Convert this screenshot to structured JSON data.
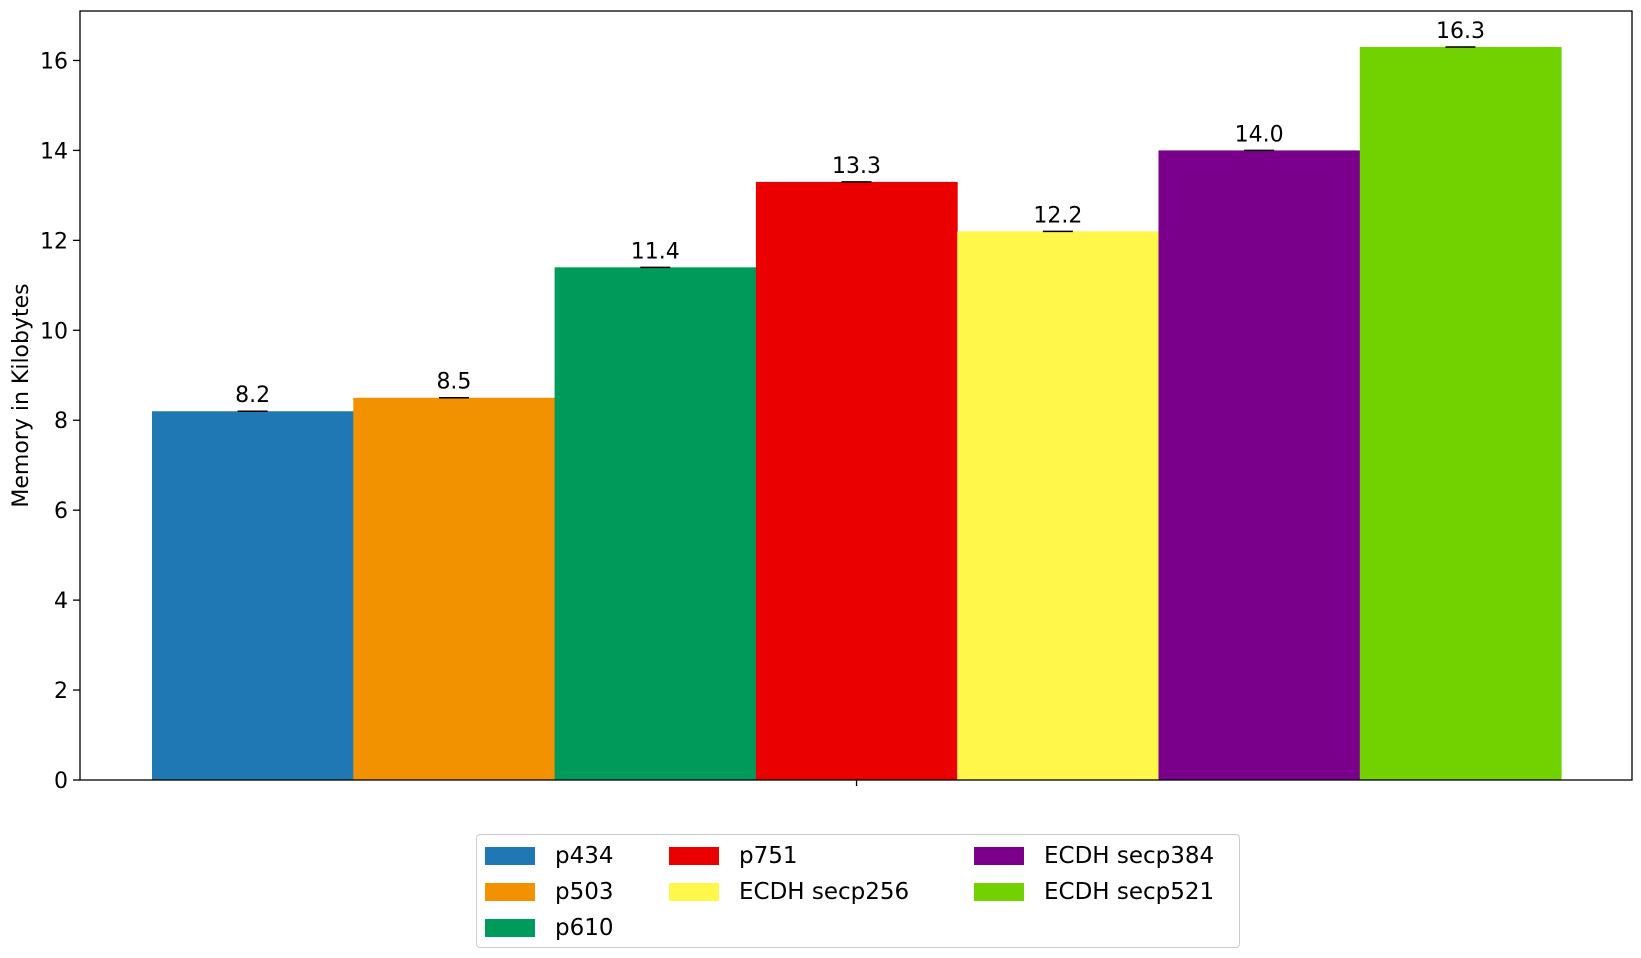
{
  "chart_data": {
    "type": "bar",
    "title": "",
    "xlabel": "",
    "ylabel": "Memory in Kilobytes",
    "ylim": [
      0,
      17.1
    ],
    "yticks": [
      0,
      2,
      4,
      6,
      8,
      10,
      12,
      14,
      16
    ],
    "grid": false,
    "legend_position": "bottom-center",
    "error_bars": true,
    "series": [
      {
        "name": "p434",
        "value": 8.2,
        "label": "8.2",
        "color": "#1f77b4"
      },
      {
        "name": "p503",
        "value": 8.5,
        "label": "8.5",
        "color": "#f39200"
      },
      {
        "name": "p610",
        "value": 11.4,
        "label": "11.4",
        "color": "#009a5b"
      },
      {
        "name": "p751",
        "value": 13.3,
        "label": "13.3",
        "color": "#eb0000"
      },
      {
        "name": "ECDH secp256",
        "value": 12.2,
        "label": "12.2",
        "color": "#fff84a"
      },
      {
        "name": "ECDH secp384",
        "value": 14.0,
        "label": "14.0",
        "color": "#7a008c"
      },
      {
        "name": "ECDH secp521",
        "value": 16.3,
        "label": "16.3",
        "color": "#72d200"
      }
    ]
  }
}
